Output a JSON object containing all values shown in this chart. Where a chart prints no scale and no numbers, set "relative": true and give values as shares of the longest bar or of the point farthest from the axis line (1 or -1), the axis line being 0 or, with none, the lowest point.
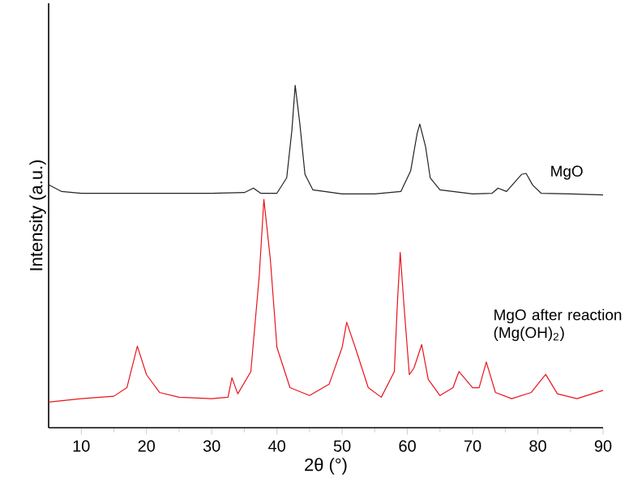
{
  "chart_data": {
    "type": "line",
    "relative": true,
    "xlabel": "2θ (°)",
    "ylabel": "Intensity (a.u.)",
    "xlim": [
      5,
      90
    ],
    "xticks": [
      10,
      20,
      30,
      40,
      50,
      60,
      70,
      80,
      90
    ],
    "series": [
      {
        "name": "MgO",
        "color": "#222222",
        "x": [
          5,
          7,
          10,
          20,
          30,
          35,
          36.4,
          37.5,
          40,
          41.5,
          42.3,
          42.8,
          43.5,
          44.3,
          45.5,
          50,
          55,
          59,
          60.5,
          61.5,
          61.9,
          62.8,
          63.5,
          65,
          70,
          73,
          73.9,
          75.2,
          77.5,
          78.2,
          79.2,
          80.5,
          85,
          90
        ],
        "values": [
          0.71,
          0.69,
          0.685,
          0.685,
          0.685,
          0.687,
          0.7,
          0.685,
          0.685,
          0.73,
          0.87,
          1.0,
          0.89,
          0.74,
          0.695,
          0.683,
          0.683,
          0.69,
          0.75,
          0.86,
          0.887,
          0.82,
          0.73,
          0.695,
          0.683,
          0.685,
          0.7,
          0.69,
          0.74,
          0.743,
          0.709,
          0.685,
          0.683,
          0.68
        ]
      },
      {
        "name": "MgO after reaction (Mg(OH)$_{2}$)",
        "color": "#e8141c",
        "x": [
          5,
          10,
          15,
          17,
          18.6,
          20,
          22,
          25,
          30,
          32.5,
          33.1,
          34,
          36,
          37.3,
          38.0,
          39,
          40,
          42,
          45,
          48,
          50,
          50.7,
          52,
          54,
          56,
          58,
          58.5,
          58.9,
          59.5,
          60.3,
          61,
          62.2,
          63.2,
          65,
          67,
          67.9,
          70,
          71,
          72.1,
          73.5,
          76,
          79,
          81.2,
          83,
          86,
          90
        ],
        "values": [
          0.075,
          0.085,
          0.092,
          0.117,
          0.238,
          0.155,
          0.103,
          0.089,
          0.085,
          0.089,
          0.146,
          0.099,
          0.164,
          0.446,
          0.667,
          0.49,
          0.235,
          0.117,
          0.094,
          0.127,
          0.235,
          0.308,
          0.235,
          0.117,
          0.089,
          0.164,
          0.376,
          0.512,
          0.352,
          0.155,
          0.174,
          0.243,
          0.141,
          0.094,
          0.117,
          0.164,
          0.117,
          0.117,
          0.192,
          0.103,
          0.085,
          0.103,
          0.156,
          0.099,
          0.085,
          0.109
        ]
      }
    ]
  }
}
